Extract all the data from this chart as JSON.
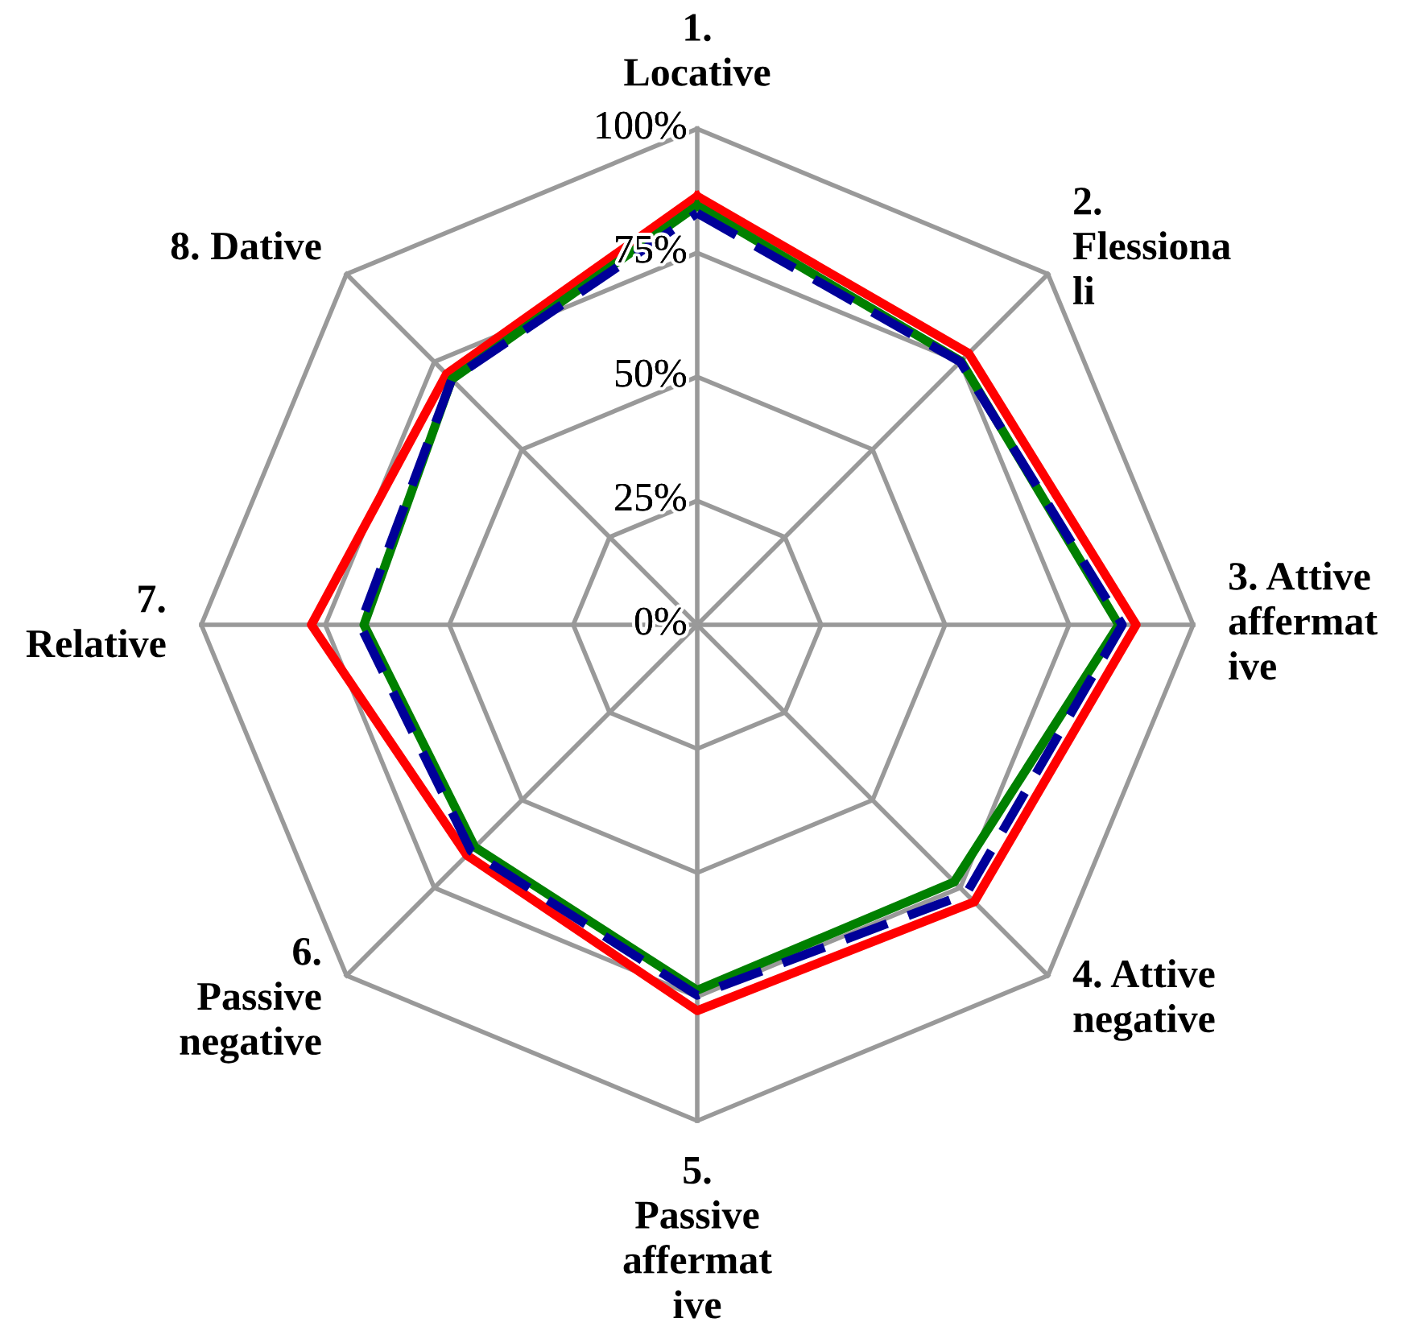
{
  "chart_data": {
    "type": "radar",
    "categories": [
      "1.\nLocative",
      "2.\nFlessiona\nli",
      "3. Attive\naffermat\nive",
      "4. Attive\nnegative",
      "5.\nPassive\naffermat\nive",
      "6.\nPassive\nnegative",
      "7.\nRelative",
      "8. Dative"
    ],
    "ylim": [
      0,
      1
    ],
    "yticks": [
      {
        "value": 0,
        "label": "0%"
      },
      {
        "value": 0.25,
        "label": "25%"
      },
      {
        "value": 0.5,
        "label": "50%"
      },
      {
        "value": 0.75,
        "label": "75%"
      },
      {
        "value": 1,
        "label": "100%"
      }
    ],
    "series": [
      {
        "color": "#ff0000",
        "line_style": "solid",
        "values": [
          0.864,
          0.774,
          0.885,
          0.79,
          0.778,
          0.657,
          0.778,
          0.715
        ]
      },
      {
        "color": "#008000",
        "line_style": "solid",
        "values": [
          0.845,
          0.752,
          0.85,
          0.733,
          0.737,
          0.634,
          0.672,
          0.7
        ]
      },
      {
        "color": "#000099",
        "line_style": "dashed",
        "values": [
          0.83,
          0.75,
          0.857,
          0.767,
          0.747,
          0.645,
          0.68,
          0.7
        ]
      }
    ]
  }
}
